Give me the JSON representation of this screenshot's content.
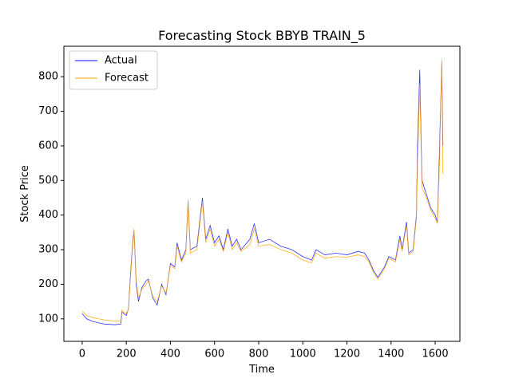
{
  "chart_data": {
    "type": "line",
    "title": "Forecasting Stock BBYB TRAIN_5",
    "x_label": "Time",
    "y_label": "Stock Price",
    "x": [
      0,
      20,
      50,
      100,
      150,
      175,
      180,
      200,
      210,
      220,
      230,
      235,
      245,
      255,
      270,
      290,
      300,
      320,
      340,
      360,
      380,
      400,
      420,
      430,
      450,
      470,
      480,
      490,
      520,
      545,
      560,
      580,
      600,
      620,
      640,
      660,
      680,
      700,
      720,
      760,
      780,
      800,
      850,
      900,
      950,
      1000,
      1040,
      1060,
      1100,
      1150,
      1200,
      1250,
      1280,
      1300,
      1320,
      1340,
      1370,
      1390,
      1420,
      1440,
      1450,
      1470,
      1480,
      1500,
      1515,
      1520,
      1530,
      1540,
      1560,
      1580,
      1600,
      1610,
      1620,
      1630,
      1635
    ],
    "series": [
      {
        "name": "Actual",
        "color": "#0000ff",
        "values": [
          115,
          100,
          92,
          85,
          83,
          85,
          120,
          110,
          130,
          240,
          330,
          355,
          200,
          150,
          190,
          210,
          215,
          160,
          140,
          200,
          170,
          260,
          250,
          320,
          270,
          300,
          440,
          300,
          310,
          450,
          330,
          370,
          320,
          340,
          300,
          360,
          310,
          330,
          300,
          330,
          375,
          320,
          330,
          310,
          300,
          280,
          270,
          300,
          285,
          290,
          285,
          295,
          290,
          270,
          240,
          220,
          250,
          280,
          270,
          340,
          300,
          380,
          290,
          300,
          400,
          600,
          820,
          500,
          460,
          420,
          400,
          380,
          600,
          840,
          600
        ]
      },
      {
        "name": "Forecast",
        "color": "#ffa500",
        "values": [
          122,
          110,
          103,
          97,
          93,
          95,
          125,
          115,
          128,
          230,
          320,
          360,
          210,
          160,
          185,
          200,
          210,
          165,
          150,
          195,
          175,
          255,
          245,
          310,
          265,
          290,
          445,
          290,
          300,
          440,
          320,
          360,
          310,
          330,
          295,
          350,
          300,
          320,
          295,
          315,
          360,
          310,
          315,
          300,
          290,
          270,
          262,
          290,
          275,
          280,
          278,
          285,
          280,
          265,
          235,
          215,
          245,
          275,
          265,
          330,
          295,
          370,
          285,
          295,
          390,
          550,
          780,
          480,
          450,
          415,
          390,
          375,
          560,
          850,
          520
        ]
      }
    ],
    "xlim": [
      -83,
      1712
    ],
    "ylim": [
      35,
      888
    ],
    "xticks": [
      0,
      200,
      400,
      600,
      800,
      1000,
      1200,
      1400,
      1600
    ],
    "yticks": [
      100,
      200,
      300,
      400,
      500,
      600,
      700,
      800
    ],
    "legend": "upper left"
  }
}
